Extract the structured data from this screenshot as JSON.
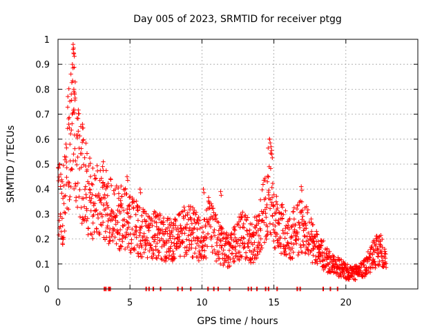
{
  "chart_data": {
    "type": "scatter",
    "title": "Day 005 of 2023, SRMTID for receiver ptgg",
    "xlabel": "GPS time / hours",
    "ylabel": "SRMTID / TECUs",
    "xlim": [
      0,
      25
    ],
    "ylim": [
      0,
      1
    ],
    "xticks": [
      0,
      5,
      10,
      15,
      20
    ],
    "xtick_labels": [
      "0",
      "5",
      "10",
      "15",
      "20"
    ],
    "yticks": [
      0,
      0.1,
      0.2,
      0.3,
      0.4,
      0.5,
      0.6,
      0.7,
      0.8,
      0.9,
      1
    ],
    "ytick_labels": [
      "0",
      "0.1",
      "0.2",
      "0.3",
      "0.4",
      "0.5",
      "0.6",
      "0.7",
      "0.8",
      "0.9",
      "1"
    ],
    "grid": true,
    "marker": "+",
    "color": "#ff0000",
    "series": [
      {
        "name": "SRMTID",
        "trend": [
          [
            0.0,
            0.4
          ],
          [
            0.3,
            0.3
          ],
          [
            0.5,
            0.45
          ],
          [
            0.7,
            0.55
          ],
          [
            0.9,
            0.6
          ],
          [
            1.1,
            0.7
          ],
          [
            1.3,
            0.55
          ],
          [
            1.6,
            0.48
          ],
          [
            1.9,
            0.42
          ],
          [
            2.2,
            0.38
          ],
          [
            2.5,
            0.35
          ],
          [
            2.8,
            0.34
          ],
          [
            3.1,
            0.36
          ],
          [
            3.3,
            0.33
          ],
          [
            3.8,
            0.3
          ],
          [
            4.2,
            0.28
          ],
          [
            4.6,
            0.29
          ],
          [
            5.0,
            0.26
          ],
          [
            5.5,
            0.24
          ],
          [
            6.0,
            0.22
          ],
          [
            6.5,
            0.21
          ],
          [
            7.0,
            0.22
          ],
          [
            7.5,
            0.2
          ],
          [
            8.0,
            0.19
          ],
          [
            8.5,
            0.22
          ],
          [
            9.0,
            0.25
          ],
          [
            9.5,
            0.22
          ],
          [
            10.0,
            0.18
          ],
          [
            10.5,
            0.26
          ],
          [
            11.0,
            0.2
          ],
          [
            11.5,
            0.16
          ],
          [
            12.0,
            0.15
          ],
          [
            12.5,
            0.2
          ],
          [
            13.0,
            0.22
          ],
          [
            13.5,
            0.18
          ],
          [
            14.0,
            0.25
          ],
          [
            14.4,
            0.33
          ],
          [
            14.7,
            0.42
          ],
          [
            15.0,
            0.3
          ],
          [
            15.5,
            0.24
          ],
          [
            16.0,
            0.2
          ],
          [
            16.5,
            0.23
          ],
          [
            17.0,
            0.27
          ],
          [
            17.5,
            0.2
          ],
          [
            18.0,
            0.16
          ],
          [
            18.5,
            0.13
          ],
          [
            19.0,
            0.1
          ],
          [
            19.5,
            0.09
          ],
          [
            20.0,
            0.07
          ],
          [
            20.5,
            0.06
          ],
          [
            21.0,
            0.07
          ],
          [
            21.5,
            0.1
          ],
          [
            22.0,
            0.14
          ],
          [
            22.4,
            0.16
          ],
          [
            22.8,
            0.1
          ]
        ],
        "spikes": [
          [
            1.05,
            0.98
          ],
          [
            1.05,
            0.96
          ],
          [
            1.0,
            0.9
          ],
          [
            1.1,
            0.8
          ],
          [
            1.15,
            0.78
          ],
          [
            1.1,
            0.72
          ],
          [
            0.75,
            0.66
          ],
          [
            1.7,
            0.66
          ],
          [
            14.7,
            0.6
          ],
          [
            14.8,
            0.57
          ],
          [
            14.85,
            0.54
          ],
          [
            0.55,
            0.58
          ],
          [
            2.2,
            0.4
          ],
          [
            3.1,
            0.49
          ],
          [
            4.8,
            0.45
          ],
          [
            5.7,
            0.4
          ],
          [
            10.1,
            0.4
          ],
          [
            11.3,
            0.39
          ],
          [
            16.9,
            0.41
          ],
          [
            12.7,
            0.3
          ]
        ],
        "zero_points": [
          3.2,
          3.3,
          3.5,
          3.6,
          6.1,
          6.3,
          6.6,
          7.1,
          8.3,
          8.6,
          9.2,
          10.4,
          10.8,
          11.1,
          11.9,
          13.2,
          13.4,
          13.8,
          14.4,
          14.6,
          15.2,
          16.6,
          16.8,
          18.4,
          18.9,
          19.4
        ]
      }
    ]
  }
}
